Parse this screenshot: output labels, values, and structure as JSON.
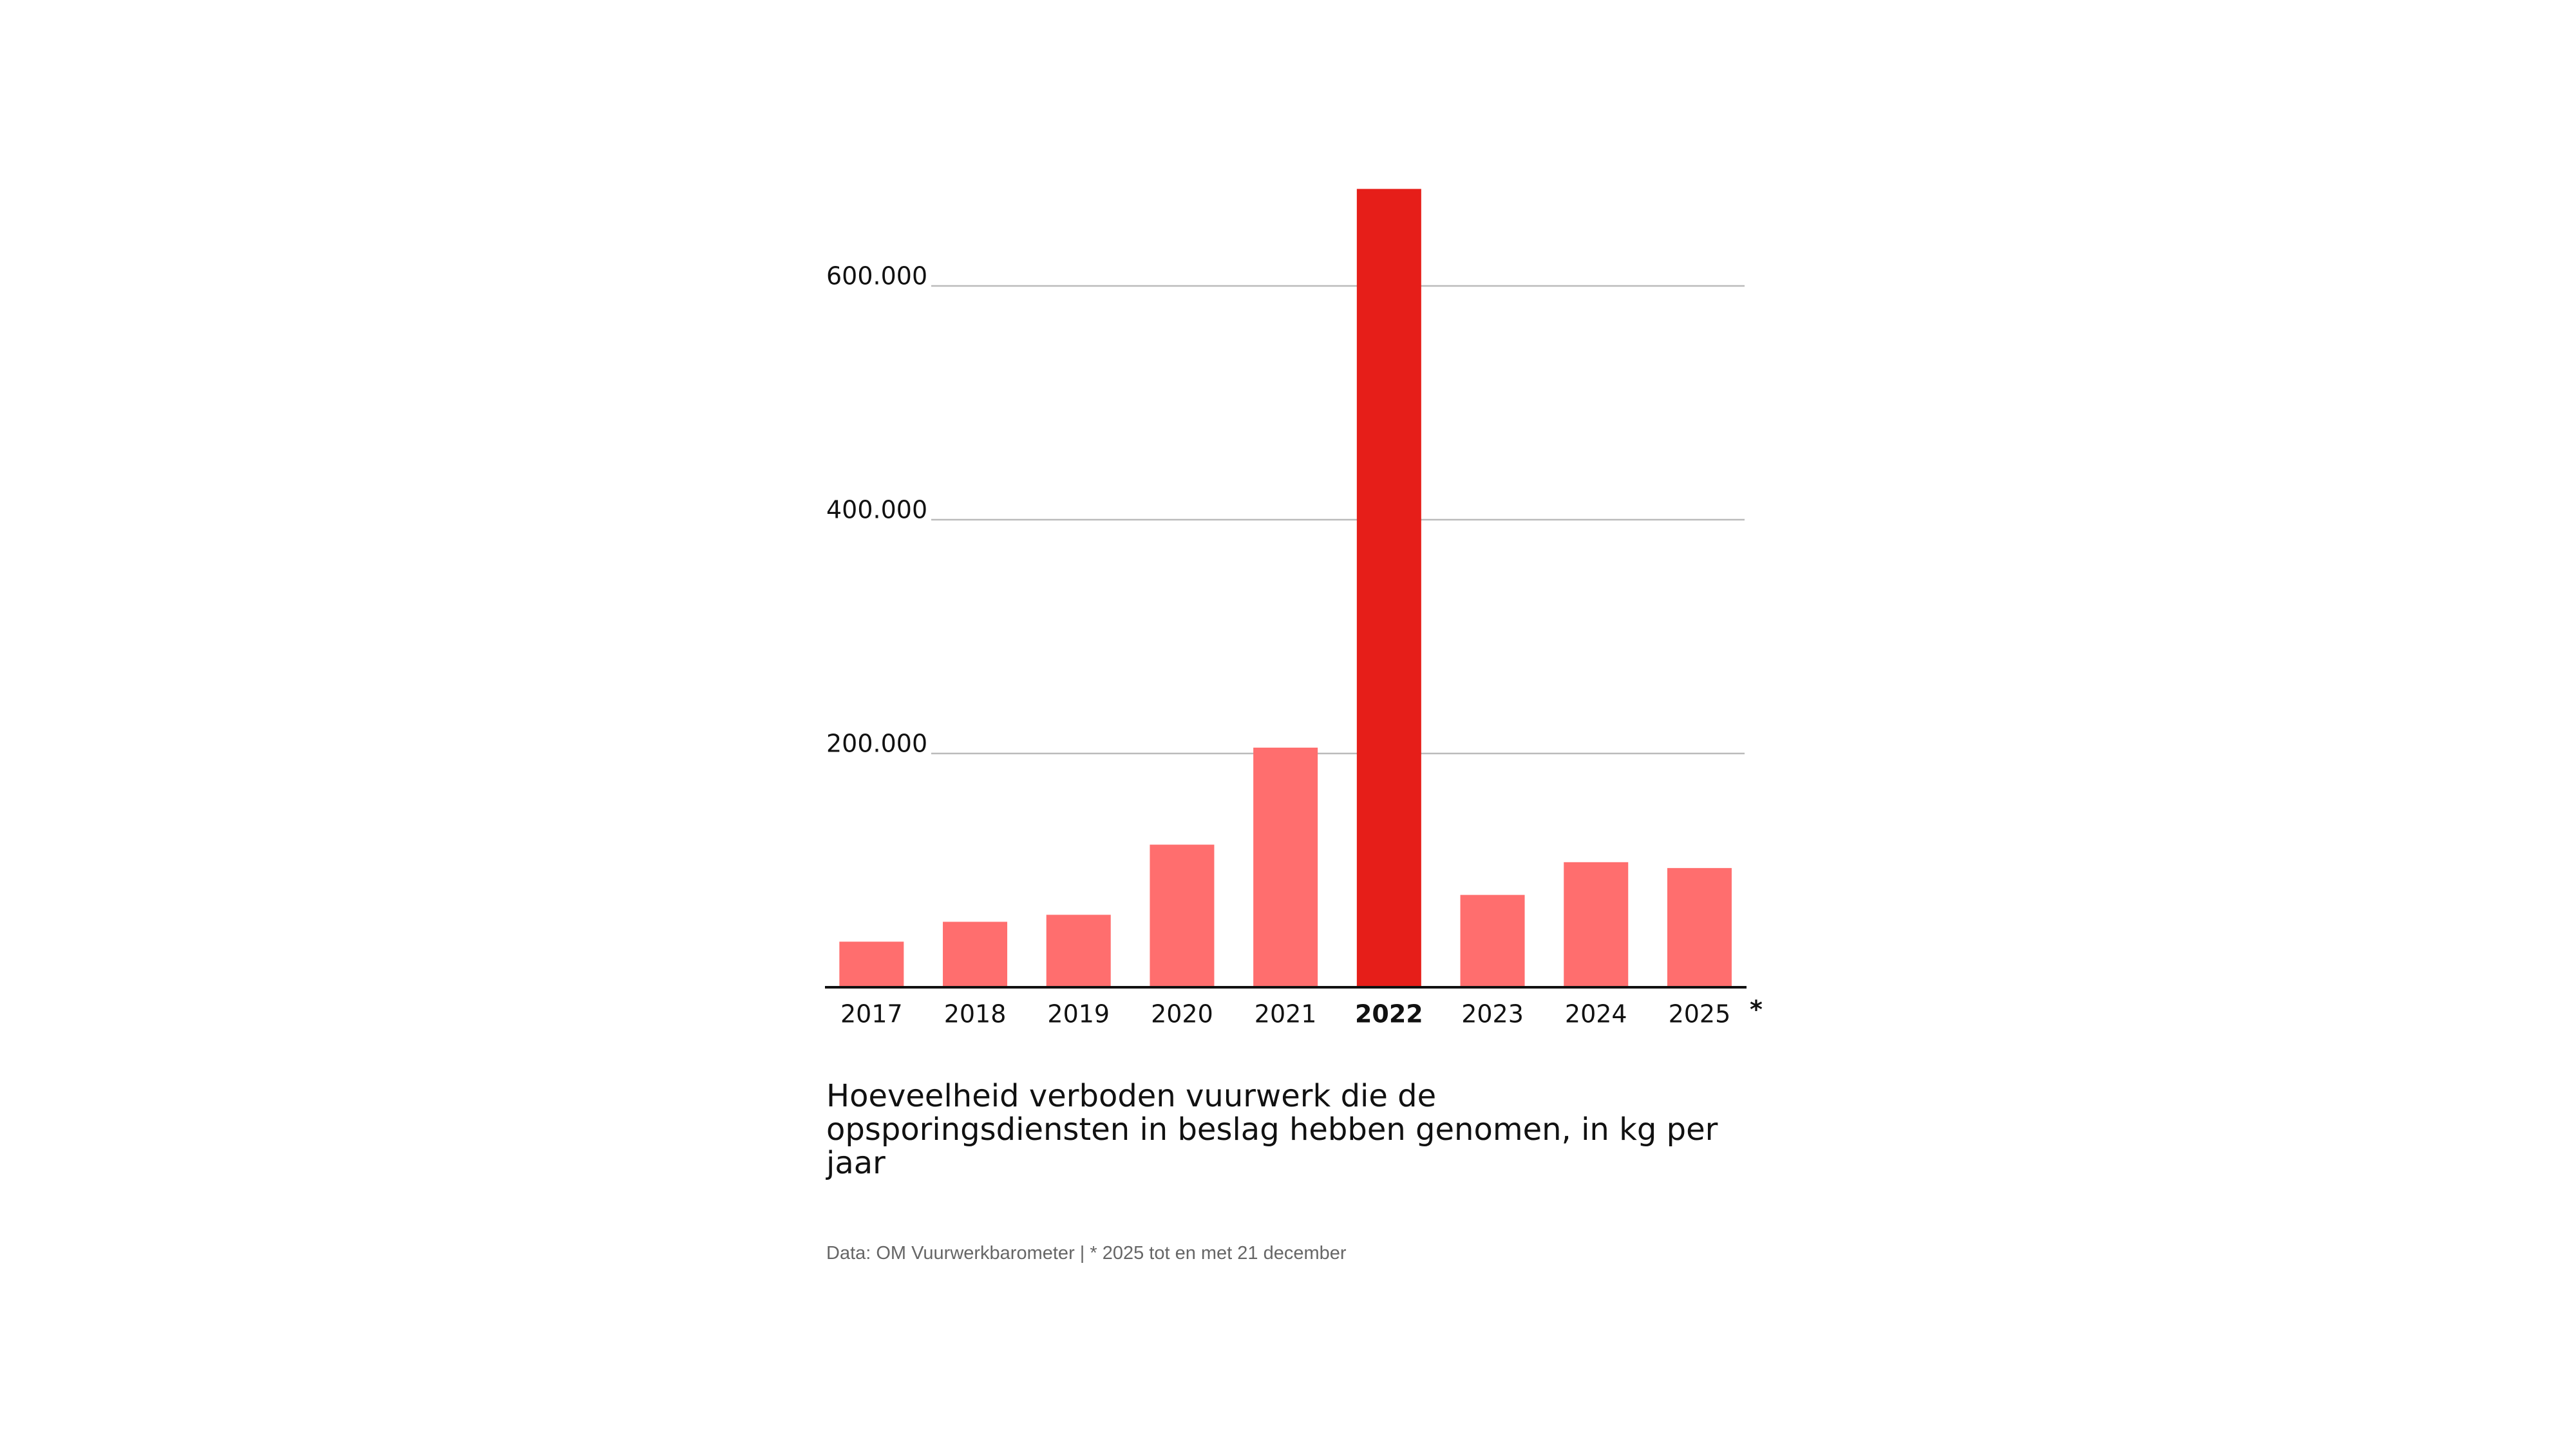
{
  "chart_data": {
    "type": "bar",
    "description": "Hoeveelheid verboden vuurwerk die de opsporingsdiensten in beslag hebben genomen, in kg per jaar",
    "source": "Data: OM Vuurwerkbarometer | * 2025 tot en met 21 december",
    "footnote_marker": "*",
    "categories": [
      "2017",
      "2018",
      "2019",
      "2020",
      "2021",
      "2022",
      "2023",
      "2024",
      "2025"
    ],
    "values": [
      39000,
      56000,
      62000,
      122000,
      205000,
      683000,
      79000,
      107000,
      102000
    ],
    "color": "#ff6e6e",
    "highlight": "2022",
    "highlight_color": "#e61e19",
    "ylim": [
      0,
      700000
    ],
    "yticks": [
      {
        "value": 200000,
        "label": "200.000"
      },
      {
        "value": 400000,
        "label": "400.000"
      },
      {
        "value": 600000,
        "label": "600.000"
      }
    ],
    "grid": true
  }
}
